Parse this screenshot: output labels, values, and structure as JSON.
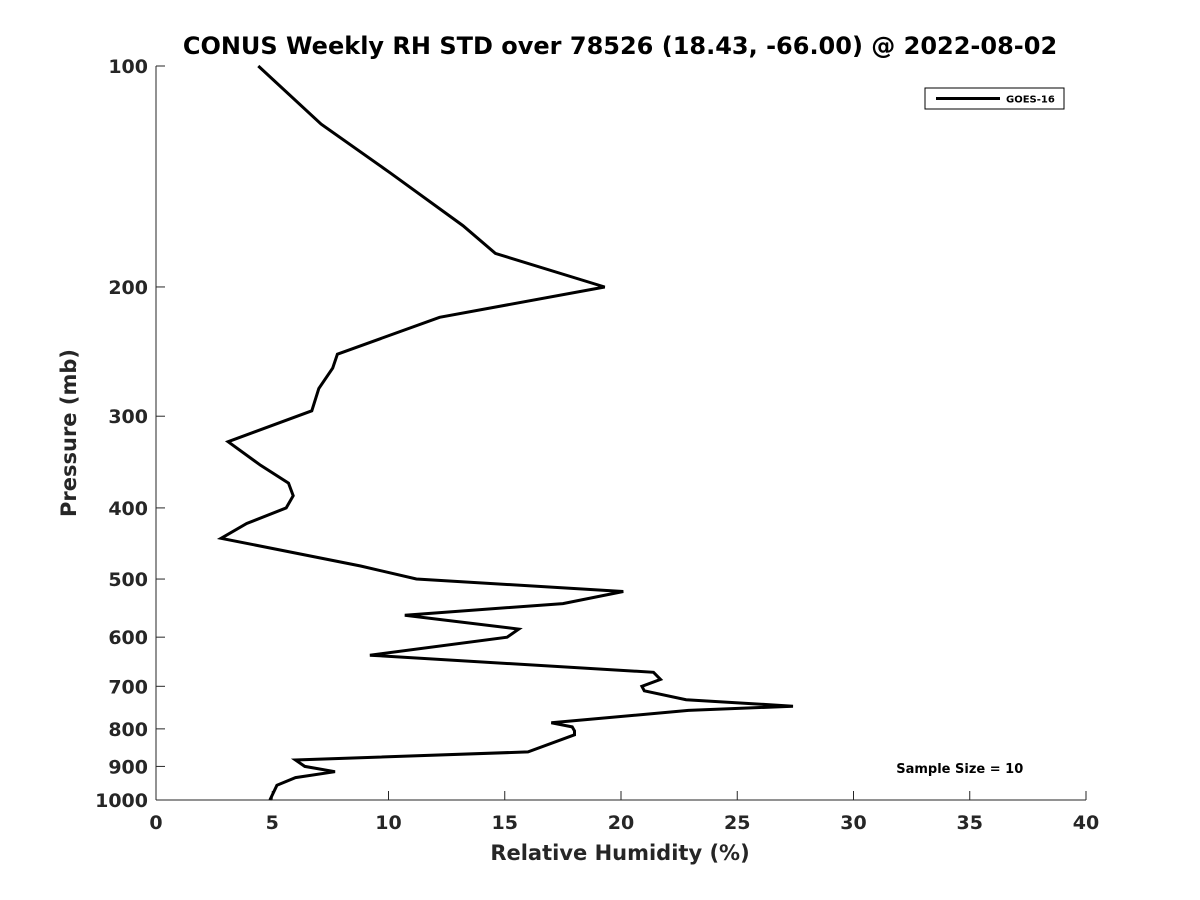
{
  "chart_data": {
    "type": "line",
    "title": "CONUS Weekly RH STD over 78526 (18.43, -66.00) @ 2022-08-02",
    "xlabel": "Relative Humidity (%)",
    "ylabel": "Pressure (mb)",
    "xlim": [
      0,
      40
    ],
    "ylim": [
      100,
      1000
    ],
    "yscale": "log",
    "yreversed": true,
    "x_ticks": [
      0,
      5,
      10,
      15,
      20,
      25,
      30,
      35,
      40
    ],
    "x_tick_labels": [
      "0",
      "5",
      "10",
      "15",
      "20",
      "25",
      "30",
      "35",
      "40"
    ],
    "y_ticks": [
      100,
      200,
      300,
      400,
      500,
      600,
      700,
      800,
      900,
      1000
    ],
    "y_tick_labels": [
      "100",
      "200",
      "300",
      "400",
      "500",
      "600",
      "700",
      "800",
      "900",
      "1000"
    ],
    "grid": false,
    "legend_position": "top-right",
    "series": [
      {
        "name": "GOES-16",
        "color": "#000000",
        "x": [
          4.4,
          7.1,
          10.1,
          13.2,
          14.6,
          19.3,
          12.2,
          7.8,
          7.6,
          7.0,
          6.7,
          3.1,
          4.5,
          5.7,
          5.9,
          5.6,
          3.9,
          2.8,
          8.8,
          11.2,
          20.1,
          17.5,
          10.7,
          15.6,
          15.1,
          9.2,
          21.4,
          21.7,
          20.9,
          21.0,
          22.8,
          27.4,
          22.9,
          17.0,
          17.9,
          18.0,
          18.0,
          16.0,
          6.0,
          6.4,
          7.7,
          6.0,
          5.2,
          4.9
        ],
        "y": [
          100,
          120,
          140,
          165,
          180,
          200,
          220,
          247,
          258,
          275,
          295,
          325,
          350,
          370,
          385,
          400,
          420,
          440,
          480,
          500,
          520,
          540,
          560,
          585,
          600,
          635,
          670,
          685,
          700,
          710,
          730,
          745,
          755,
          785,
          795,
          805,
          815,
          860,
          882,
          900,
          915,
          932,
          955,
          1000
        ]
      }
    ],
    "annotations": [
      {
        "text": "Sample Size = 10",
        "at": [
          35,
          905
        ]
      }
    ]
  }
}
